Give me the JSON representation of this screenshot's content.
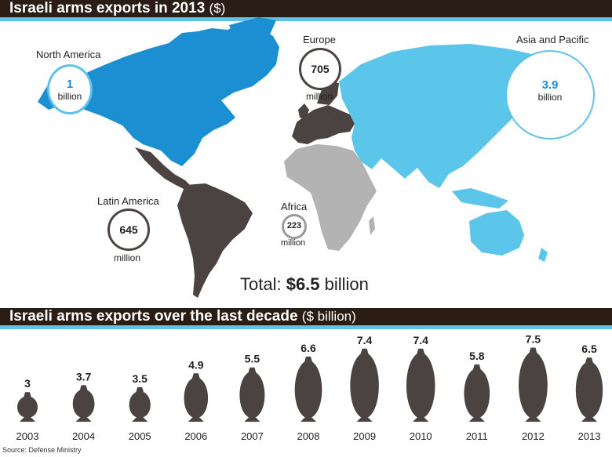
{
  "map": {
    "title": "Israeli arms exports in 2013",
    "title_unit": "($)",
    "total_prefix": "Total: ",
    "total_value": "$6.5",
    "total_suffix": " billion",
    "regions": [
      {
        "name": "North America",
        "value": "1",
        "unit": "billion",
        "style": "blue"
      },
      {
        "name": "Europe",
        "value": "705",
        "unit": "million",
        "style": "dark"
      },
      {
        "name": "Asia and Pacific",
        "value": "3.9",
        "unit": "billion",
        "style": "blue"
      },
      {
        "name": "Latin America",
        "value": "645",
        "unit": "million",
        "style": "dark"
      },
      {
        "name": "Africa",
        "value": "223",
        "unit": "million",
        "style": "grey"
      }
    ],
    "colors": {
      "north_america": "#1c8fd2",
      "asia": "#5bc5ea",
      "europe": "#4b4341",
      "latin_america": "#4b4341",
      "africa": "#b3b3b3",
      "accent": "#5fc2e6",
      "band": "#2a1d15"
    }
  },
  "chart_data": {
    "type": "bar",
    "title": "Israeli arms exports over the last decade",
    "title_unit": "($ billion)",
    "categories": [
      "2003",
      "2004",
      "2005",
      "2006",
      "2007",
      "2008",
      "2009",
      "2010",
      "2011",
      "2012",
      "2013"
    ],
    "values": [
      3,
      3.7,
      3.5,
      4.9,
      5.5,
      6.6,
      7.4,
      7.4,
      5.8,
      7.5,
      6.5
    ],
    "value_labels": [
      "3",
      "3.7",
      "3.5",
      "4.9",
      "5.5",
      "6.6",
      "7.4",
      "7.4",
      "5.8",
      "7.5",
      "6.5"
    ],
    "mark": "bomb",
    "color": "#4b4341"
  },
  "source": "Source: Defense Ministry"
}
